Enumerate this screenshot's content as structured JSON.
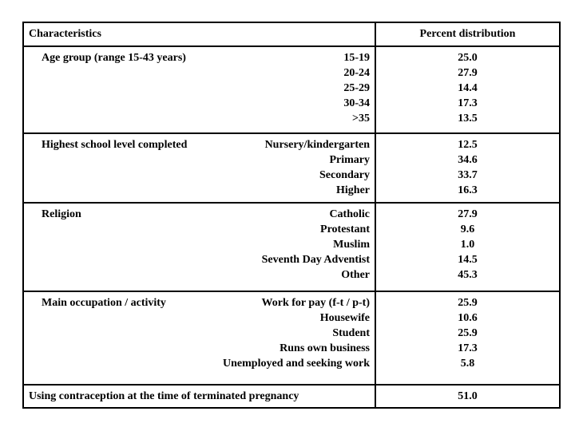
{
  "window": {
    "background_color": "#ffffff",
    "border_color": "#000000",
    "text_color": "#000000"
  },
  "table": {
    "header": {
      "characteristics": "Characteristics",
      "percent": "Percent distribution"
    },
    "sections": [
      {
        "label": "Age group (range 15-43 years)",
        "items": [
          {
            "name": "15-19",
            "value": "25.0"
          },
          {
            "name": "20-24",
            "value": "27.9"
          },
          {
            "name": "25-29",
            "value": "14.4"
          },
          {
            "name": "30-34",
            "value": "17.3"
          },
          {
            "name": ">35",
            "value": "13.5"
          }
        ]
      },
      {
        "label": "Highest school level completed",
        "items": [
          {
            "name": "Nursery/kindergarten",
            "value": "12.5"
          },
          {
            "name": "Primary",
            "value": "34.6"
          },
          {
            "name": "Secondary",
            "value": "33.7"
          },
          {
            "name": "Higher",
            "value": "16.3"
          }
        ]
      },
      {
        "label": "Religion",
        "items": [
          {
            "name": "Catholic",
            "value": "27.9"
          },
          {
            "name": "Protestant",
            "value": "9.6"
          },
          {
            "name": "Muslim",
            "value": "1.0"
          },
          {
            "name": "Seventh Day Adventist",
            "value": "14.5"
          },
          {
            "name": "Other",
            "value": "45.3"
          }
        ]
      },
      {
        "label": "Main occupation / activity",
        "items": [
          {
            "name": "Work for pay (f-t / p-t)",
            "value": "25.9"
          },
          {
            "name": "Housewife",
            "value": "10.6"
          },
          {
            "name": "Student",
            "value": "25.9"
          },
          {
            "name": "Runs own business",
            "value": "17.3"
          },
          {
            "name": "Unemployed and seeking work",
            "value": "5.8"
          }
        ]
      }
    ],
    "footer": {
      "label": "Using contraception at the time of terminated pregnancy",
      "value": "51.0"
    }
  }
}
